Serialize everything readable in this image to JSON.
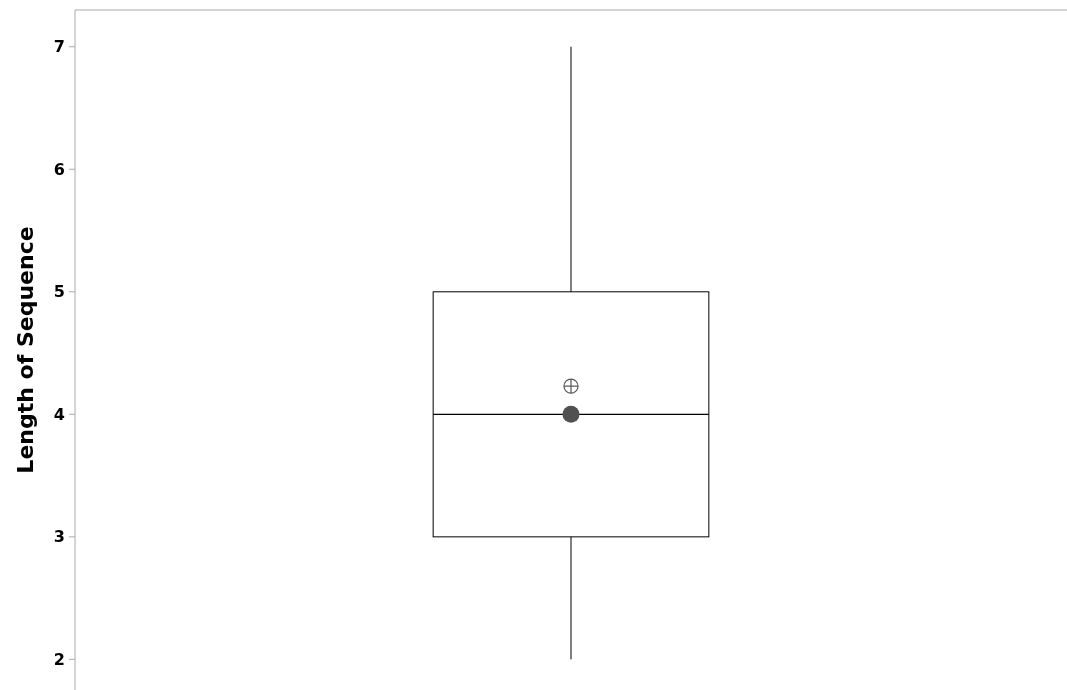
{
  "chart_data": {
    "type": "box",
    "ylabel": "Length of Sequence",
    "categories": [
      null
    ],
    "ylim": [
      1.75,
      7.3
    ],
    "yticks": [
      2,
      3,
      4,
      5,
      6,
      7
    ],
    "grid": false,
    "tick_labels": "y",
    "series": [
      {
        "color": "#000000",
        "boxes": [
          {
            "low": 2,
            "q1": 3,
            "median": 4,
            "q3": 5,
            "high": 7,
            "mean": 4.23
          }
        ]
      },
      {
        "type": "scatter",
        "color": "#505050",
        "marker": "circle",
        "values": [
          4
        ]
      }
    ]
  }
}
